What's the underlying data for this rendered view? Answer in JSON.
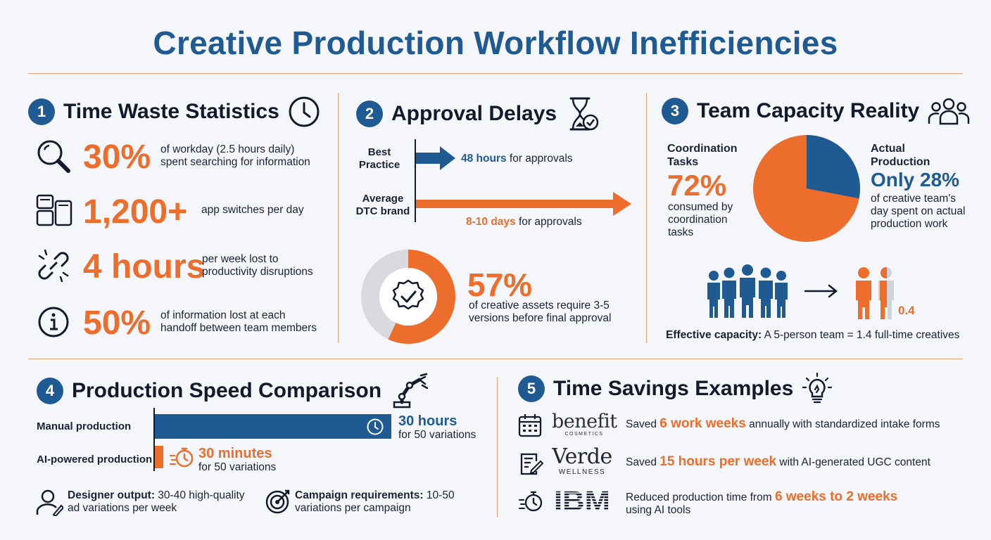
{
  "title": "Creative Production Workflow Inefficiencies",
  "colors": {
    "navy": "#1f5a93",
    "orange": "#ec6d2c",
    "divider": "#e6a07a",
    "background": "#f4f6fa"
  },
  "section1": {
    "number": "1",
    "title": "Time Waste Statistics",
    "icon": "clock-icon",
    "stats": [
      {
        "icon": "magnifier-icon",
        "value": "30%",
        "line1": "of workday (2.5 hours daily)",
        "line2": "spent searching for information"
      },
      {
        "icon": "app-windows-icon",
        "value": "1,200+",
        "line1": "app switches per day",
        "line2": ""
      },
      {
        "icon": "broken-link-icon",
        "value": "4 hours",
        "line1": "per week lost to",
        "line2": "productivity disruptions"
      },
      {
        "icon": "info-icon",
        "value": "50%",
        "line1": "of information lost at each",
        "line2": "handoff between team members"
      }
    ]
  },
  "section2": {
    "number": "2",
    "title": "Approval Delays",
    "icon": "hourglass-check-icon",
    "rows": [
      {
        "label1": "Best",
        "label2": "Practice",
        "value": "48 hours",
        "rest": " for approvals"
      },
      {
        "label1": "Average",
        "label2": "DTC brand",
        "value": "8-10 days",
        "rest": " for approvals"
      }
    ],
    "donut": {
      "value": "57%",
      "percent": 57,
      "line1": "of creative assets require 3-5",
      "line2": "versions before final approval"
    }
  },
  "section3": {
    "number": "3",
    "title": "Team Capacity Reality",
    "icon": "team-icon",
    "pie": {
      "coordination_percent": 72,
      "production_percent": 28
    },
    "left": {
      "label1": "Coordination",
      "label2": "Tasks",
      "value": "72%",
      "line1": "consumed by",
      "line2": "coordination",
      "line3": "tasks"
    },
    "right": {
      "label1": "Actual",
      "label2": "Production",
      "value": "Only 28%",
      "line1": "of creative team's",
      "line2": "day spent on actual",
      "line3": "production work"
    },
    "fraction": "0.4",
    "capacity_label": "Effective capacity:",
    "capacity_text": " A 5-person team = 1.4 full-time creatives"
  },
  "section4": {
    "number": "4",
    "title": "Production Speed Comparison",
    "icon": "robot-arm-icon",
    "bars": [
      {
        "label": "Manual production",
        "value": "30 hours",
        "sub": "for 50 variations",
        "hours": 30
      },
      {
        "label": "AI-powered production",
        "value": "30 minutes",
        "sub": "for 50 variations",
        "hours": 0.5
      }
    ],
    "notes": [
      {
        "icon": "designer-icon",
        "bold": "Designer output:",
        "line1": " 30-40 high-quality",
        "line2": "ad variations per week"
      },
      {
        "icon": "target-icon",
        "bold": "Campaign requirements:",
        "line1": " 10-50",
        "line2": "variations per campaign"
      }
    ]
  },
  "section5": {
    "number": "5",
    "title": "Time Savings Examples",
    "icon": "lightbulb-icon",
    "examples": [
      {
        "icon": "calendar-icon",
        "brand": "benefit",
        "brand_sub": "COSMETICS",
        "pre": "Saved ",
        "value": "6 work weeks",
        "post": " annually with standardized intake forms",
        "post2": ""
      },
      {
        "icon": "form-edit-icon",
        "brand": "Verde",
        "brand_sub": "WELLNESS",
        "pre": "Saved ",
        "value": "15 hours per week",
        "post": " with AI-generated UGC content",
        "post2": ""
      },
      {
        "icon": "stopwatch-icon",
        "brand": "IBM",
        "brand_sub": "",
        "pre": "Reduced production time from ",
        "value": "6 weeks to 2 weeks",
        "post": "",
        "post2": "using AI tools"
      }
    ]
  }
}
